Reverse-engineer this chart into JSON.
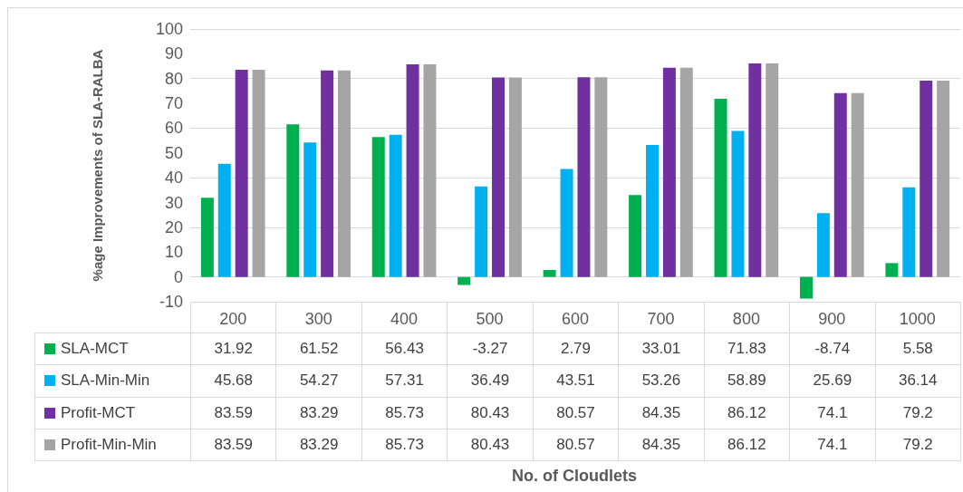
{
  "chart_data": {
    "type": "bar",
    "annotations": [
      "No. of Cloudlets"
    ],
    "ylabel": "%age Improvements of SLA-RALBA",
    "categories": [
      "200",
      "300",
      "400",
      "500",
      "600",
      "700",
      "800",
      "900",
      "1000"
    ],
    "series": [
      {
        "name": "SLA-MCT",
        "color": "#00b050",
        "values": [
          31.92,
          61.52,
          56.43,
          -3.27,
          2.79,
          33.01,
          71.83,
          -8.74,
          5.58
        ]
      },
      {
        "name": "SLA-Min-Min",
        "color": "#00b0f0",
        "values": [
          45.68,
          54.27,
          57.31,
          36.49,
          43.51,
          53.26,
          58.89,
          25.69,
          36.14
        ]
      },
      {
        "name": "Profit-MCT",
        "color": "#7030a0",
        "values": [
          83.59,
          83.29,
          85.73,
          80.43,
          80.57,
          84.35,
          86.12,
          74.1,
          79.2
        ]
      },
      {
        "name": "Profit-Min-Min",
        "color": "#a5a5a5",
        "values": [
          83.59,
          83.29,
          85.73,
          80.43,
          80.57,
          84.35,
          86.12,
          74.1,
          79.2
        ]
      }
    ],
    "ylim": [
      -10,
      100
    ],
    "yticks": [
      -10,
      0,
      10,
      20,
      30,
      40,
      50,
      60,
      70,
      80,
      90,
      100
    ],
    "grid": "y",
    "legend": "bottom left",
    "data_labels": true
  }
}
